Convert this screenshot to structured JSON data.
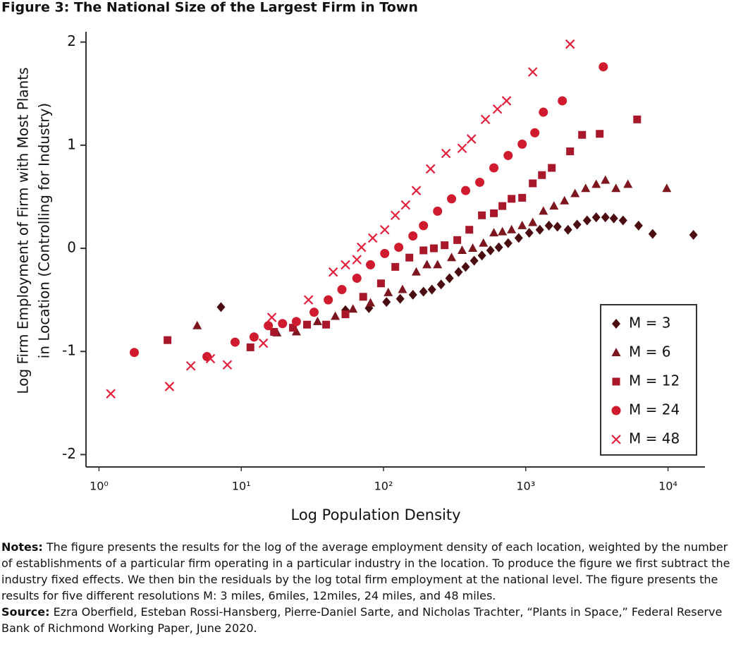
{
  "chart_data": {
    "type": "scatter",
    "title": "Figure 3: The National Size of the Largest Firm in Town",
    "x_label": "Log Population Density",
    "y_label": [
      "Log Firm Employment of Firm with Most Plants",
      "in Location (Controlling for Industry)"
    ],
    "xscale": "log",
    "xlim": [
      0.81,
      18200
    ],
    "xticks": [
      {
        "value": 1,
        "label": "10⁰"
      },
      {
        "value": 10,
        "label": "10¹"
      },
      {
        "value": 100,
        "label": "10²"
      },
      {
        "value": 1000,
        "label": "10³"
      },
      {
        "value": 10000,
        "label": "10⁴"
      }
    ],
    "ylim": [
      -2.12,
      2.1
    ],
    "yticks": [
      -2,
      -1,
      0,
      1,
      2
    ],
    "grid": false,
    "legend": "lower right",
    "series": [
      {
        "name": "M = 3",
        "color": "#4a0c10",
        "marker": "diamond",
        "x": [
          7.2,
          54,
          79,
          105,
          131,
          161,
          191,
          219,
          254,
          291,
          337,
          378,
          434,
          492,
          565,
          647,
          752,
          892,
          1058,
          1256,
          1456,
          1670,
          1982,
          2297,
          2700,
          3128,
          3630,
          4160,
          4830,
          6210,
          7800,
          15100
        ],
        "values": [
          -0.57,
          -0.6,
          -0.58,
          -0.52,
          -0.49,
          -0.45,
          -0.42,
          -0.4,
          -0.35,
          -0.29,
          -0.23,
          -0.18,
          -0.12,
          -0.07,
          -0.02,
          0.01,
          0.05,
          0.1,
          0.15,
          0.18,
          0.22,
          0.21,
          0.18,
          0.23,
          0.27,
          0.3,
          0.3,
          0.29,
          0.27,
          0.22,
          0.14,
          0.13
        ]
      },
      {
        "name": "M = 6",
        "color": "#7e1620",
        "marker": "triangle",
        "x": [
          4.9,
          17.8,
          24.4,
          34.4,
          45.8,
          61,
          81,
          108,
          136,
          170,
          202,
          240,
          301,
          357,
          424,
          504,
          597,
          685,
          795,
          944,
          1120,
          1330,
          1578,
          1872,
          2221,
          2637,
          3128,
          3630,
          4306,
          5228,
          9800
        ],
        "values": [
          -0.75,
          -0.82,
          -0.81,
          -0.71,
          -0.66,
          -0.59,
          -0.53,
          -0.43,
          -0.4,
          -0.23,
          -0.16,
          -0.16,
          -0.09,
          -0.02,
          0.0,
          0.05,
          0.15,
          0.16,
          0.18,
          0.22,
          0.25,
          0.36,
          0.41,
          0.46,
          0.53,
          0.58,
          0.62,
          0.66,
          0.58,
          0.62,
          0.58
        ]
      },
      {
        "name": "M = 12",
        "color": "#a8182a",
        "marker": "square",
        "x": [
          3.03,
          11.6,
          17.0,
          23.1,
          29.0,
          39.5,
          54,
          72,
          96,
          121,
          152,
          191,
          226,
          269,
          330,
          401,
          492,
          597,
          685,
          795,
          944,
          1120,
          1300,
          1524,
          2050,
          2490,
          3311,
          6070
        ],
        "values": [
          -0.89,
          -0.96,
          -0.81,
          -0.77,
          -0.74,
          -0.74,
          -0.64,
          -0.47,
          -0.34,
          -0.18,
          -0.09,
          -0.02,
          0.0,
          0.03,
          0.08,
          0.18,
          0.32,
          0.34,
          0.41,
          0.48,
          0.49,
          0.63,
          0.71,
          0.78,
          0.94,
          1.1,
          1.11,
          1.25
        ]
      },
      {
        "name": "M = 24",
        "color": "#d01a2e",
        "marker": "circle",
        "x": [
          1.77,
          5.74,
          9.05,
          12.3,
          15.5,
          19.5,
          24.4,
          32.5,
          40.9,
          51,
          65,
          81,
          102,
          128,
          161,
          191,
          240,
          301,
          378,
          475,
          597,
          752,
          944,
          1158,
          1330,
          1808,
          3510
        ],
        "values": [
          -1.01,
          -1.05,
          -0.91,
          -0.86,
          -0.75,
          -0.73,
          -0.71,
          -0.62,
          -0.5,
          -0.4,
          -0.29,
          -0.16,
          -0.05,
          0.01,
          0.12,
          0.22,
          0.36,
          0.48,
          0.56,
          0.64,
          0.78,
          0.9,
          1.01,
          1.12,
          1.32,
          1.43,
          1.76
        ]
      },
      {
        "name": "M = 48",
        "color": "#e2203c",
        "marker": "x",
        "x": [
          1.21,
          3.13,
          4.42,
          6.07,
          7.98,
          14.3,
          16.4,
          29.7,
          44.3,
          54,
          65,
          70,
          84,
          102,
          121,
          143,
          170,
          214,
          275,
          357,
          415,
          521,
          632,
          733,
          1120,
          2050
        ],
        "values": [
          -1.41,
          -1.34,
          -1.14,
          -1.07,
          -1.13,
          -0.92,
          -0.67,
          -0.5,
          -0.23,
          -0.16,
          -0.11,
          0.01,
          0.1,
          0.18,
          0.32,
          0.42,
          0.56,
          0.77,
          0.92,
          0.97,
          1.06,
          1.25,
          1.35,
          1.43,
          1.71,
          1.98
        ]
      }
    ]
  },
  "notes": {
    "label": "Notes:",
    "text": "The figure presents the results for the log of the average employment density of each location, weighted by the number of establishments of a particular firm operating in a particular industry in the location. To produce the figure we first subtract the industry fixed effects. We then bin the residuals by the log total firm employment at the national level. The figure presents the results for five different resolutions M: 3 miles, 6miles, 12miles, 24 miles, and 48 miles."
  },
  "source": {
    "label": "Source:",
    "text": "Ezra Oberfield, Esteban Rossi-Hansberg, Pierre-Daniel Sarte, and Nicholas Trachter, “Plants in Space,” Federal Reserve Bank of Richmond Working Paper, June 2020."
  }
}
